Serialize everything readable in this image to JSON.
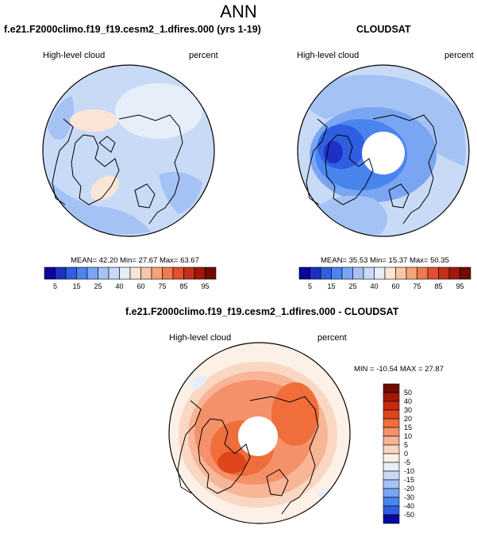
{
  "page": {
    "title": "ANN"
  },
  "colors": {
    "coast": "#000000",
    "outline": "#000000",
    "hole": "#ffffff"
  },
  "chart_data": [
    {
      "type": "heatmap",
      "projection": "north-polar-stereographic",
      "title": "f.e21.F2000climo.f19_f19.cesm2_1.dfires.000 (yrs 1-19)",
      "left_label": "High-level cloud",
      "right_label": "percent",
      "stats_text": "MEAN= 42.20  Min= 27.67  Max= 63.67",
      "stats": {
        "mean": 42.2,
        "min": 27.67,
        "max": 63.67
      },
      "colorbar": {
        "orientation": "horizontal",
        "tick_labels": [
          "5",
          "15",
          "25",
          "40",
          "60",
          "75",
          "85",
          "95"
        ],
        "levels": [
          5,
          10,
          15,
          20,
          25,
          30,
          40,
          50,
          60,
          70,
          75,
          80,
          85,
          90,
          95
        ],
        "colors": [
          "#08069c",
          "#1e2fc6",
          "#2f5fe0",
          "#4a85ee",
          "#7aa5f2",
          "#a5c2f4",
          "#c9daf6",
          "#e6eef9",
          "#fbe5d6",
          "#f9c6a6",
          "#f6a27a",
          "#ef7a50",
          "#e0502e",
          "#c62d1c",
          "#a01808",
          "#6e0c04"
        ]
      },
      "field_summary": "mostly 40-60 percent with warmer patch over Greenland and weak lows near Atlantic"
    },
    {
      "type": "heatmap",
      "projection": "north-polar-stereographic",
      "title": "CLOUDSAT",
      "left_label": "High-level cloud",
      "right_label": "percent",
      "stats_text": "MEAN= 35.53  Min= 15.37  Max= 50.35",
      "stats": {
        "mean": 35.53,
        "min": 15.37,
        "max": 50.35
      },
      "colorbar": {
        "orientation": "horizontal",
        "tick_labels": [
          "5",
          "15",
          "25",
          "40",
          "60",
          "75",
          "85",
          "95"
        ],
        "levels": [
          5,
          10,
          15,
          20,
          25,
          30,
          40,
          50,
          60,
          70,
          75,
          80,
          85,
          90,
          95
        ],
        "colors": [
          "#08069c",
          "#1e2fc6",
          "#2f5fe0",
          "#4a85ee",
          "#7aa5f2",
          "#a5c2f4",
          "#c9daf6",
          "#e6eef9",
          "#fbe5d6",
          "#f9c6a6",
          "#f6a27a",
          "#ef7a50",
          "#e0502e",
          "#c62d1c",
          "#a01808",
          "#6e0c04"
        ]
      },
      "field_summary": "low values over the Arctic with missing pole"
    },
    {
      "type": "heatmap",
      "projection": "north-polar-stereographic",
      "title": "f.e21.F2000climo.f19_f19.cesm2_1.dfires.000 - CLOUDSAT",
      "left_label": "High-level cloud",
      "right_label": "percent",
      "stats_text": "MIN = -10.54  MAX =  27.87",
      "stats": {
        "min": -10.54,
        "max": 27.87
      },
      "colorbar": {
        "orientation": "vertical",
        "tick_labels": [
          "50",
          "40",
          "30",
          "20",
          "15",
          "10",
          "5",
          "0",
          "-5",
          "-10",
          "-15",
          "-20",
          "-30",
          "-40",
          "-50"
        ],
        "colors": [
          "#6e0c04",
          "#a01808",
          "#c8280e",
          "#e0461c",
          "#ef6e3c",
          "#f5916a",
          "#f8b697",
          "#fad7c3",
          "#fdf0e6",
          "#e6eef9",
          "#c9daf6",
          "#a5c2f4",
          "#7aa5f2",
          "#4a85ee",
          "#2f5fe0",
          "#08069c"
        ]
      },
      "field_summary": "positive differences over most of the Arctic, strongest 15-25 near Siberia and Canada"
    }
  ]
}
